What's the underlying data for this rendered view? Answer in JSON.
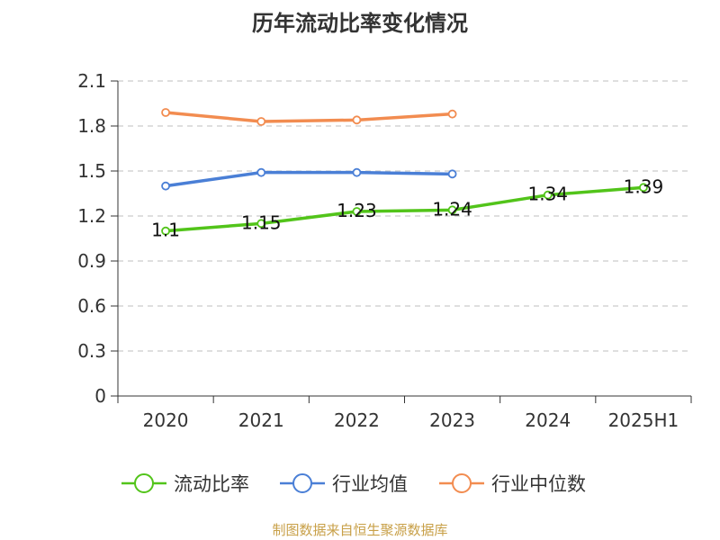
{
  "chart_data": {
    "type": "line",
    "title": "历年流动比率变化情况",
    "categories": [
      "2020",
      "2021",
      "2022",
      "2023",
      "2024",
      "2025H1"
    ],
    "yticks": [
      "0",
      "0.3",
      "0.6",
      "0.9",
      "1.2",
      "1.5",
      "1.8",
      "2.1"
    ],
    "ylim": [
      0,
      2.1
    ],
    "grid": true,
    "legend_position": "bottom",
    "series": [
      {
        "name": "流动比率",
        "color": "#52c41a",
        "values": [
          1.1,
          1.15,
          1.23,
          1.24,
          1.34,
          1.39
        ],
        "labels": [
          "1.1",
          "1.15",
          "1.23",
          "1.24",
          "1.34",
          "1.39"
        ]
      },
      {
        "name": "行业均值",
        "color": "#4a7fd6",
        "values": [
          1.4,
          1.49,
          1.49,
          1.48,
          null,
          null
        ]
      },
      {
        "name": "行业中位数",
        "color": "#f28c50",
        "values": [
          1.89,
          1.83,
          1.84,
          1.88,
          null,
          null
        ]
      }
    ]
  },
  "footer": {
    "source": "制图数据来自恒生聚源数据库"
  }
}
